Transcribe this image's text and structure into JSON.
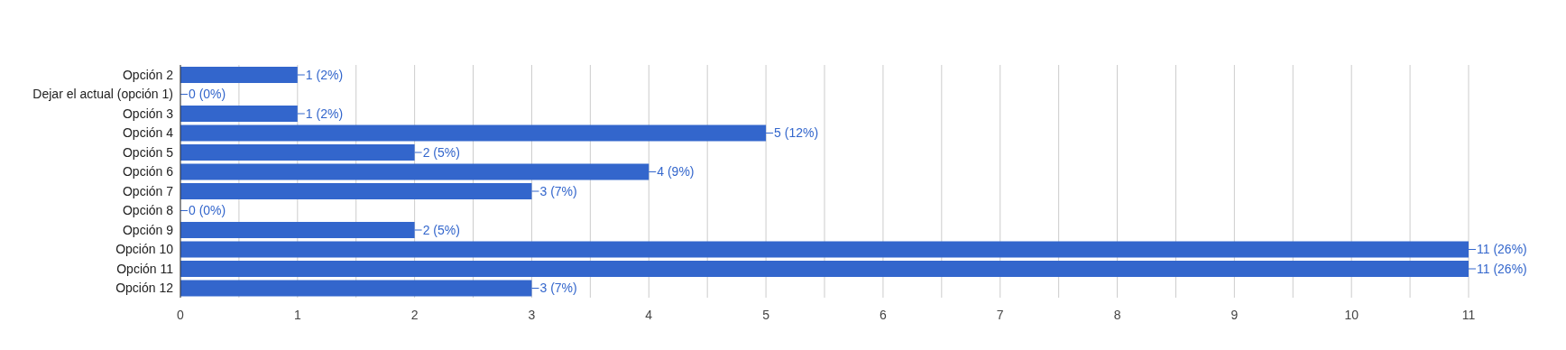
{
  "chart_data": {
    "type": "bar",
    "orientation": "horizontal",
    "categories": [
      "Opción 2",
      "Dejar el actual (opción 1)",
      "Opción 3",
      "Opción 4",
      "Opción 5",
      "Opción 6",
      "Opción 7",
      "Opción 8",
      "Opción 9",
      "Opción 10",
      "Opción 11",
      "Opción 12"
    ],
    "values": [
      1,
      0,
      1,
      5,
      2,
      4,
      3,
      0,
      2,
      11,
      11,
      3
    ],
    "value_labels": [
      "1 (2%)",
      "0 (0%)",
      "1 (2%)",
      "5 (12%)",
      "2 (5%)",
      "4 (9%)",
      "3 (7%)",
      "0 (0%)",
      "2 (5%)",
      "11 (26%)",
      "11 (26%)",
      "3 (7%)"
    ],
    "color": "#3366cc",
    "xlim": [
      0,
      11
    ],
    "xticks": [
      0,
      {
        "value": 0.5,
        "label": null
      },
      1,
      {
        "value": 1.5,
        "label": null
      },
      2,
      {
        "value": 2.5,
        "label": null
      },
      3,
      {
        "value": 3.5,
        "label": null
      },
      4,
      {
        "value": 4.5,
        "label": null
      },
      5,
      {
        "value": 5.5,
        "label": null
      },
      6,
      {
        "value": 6.5,
        "label": null
      },
      7,
      {
        "value": 7.5,
        "label": null
      },
      8,
      {
        "value": 8.5,
        "label": null
      },
      9,
      {
        "value": 9.5,
        "label": null
      },
      10,
      {
        "value": 10.5,
        "label": null
      },
      11
    ],
    "grid": "x",
    "legend": false
  }
}
